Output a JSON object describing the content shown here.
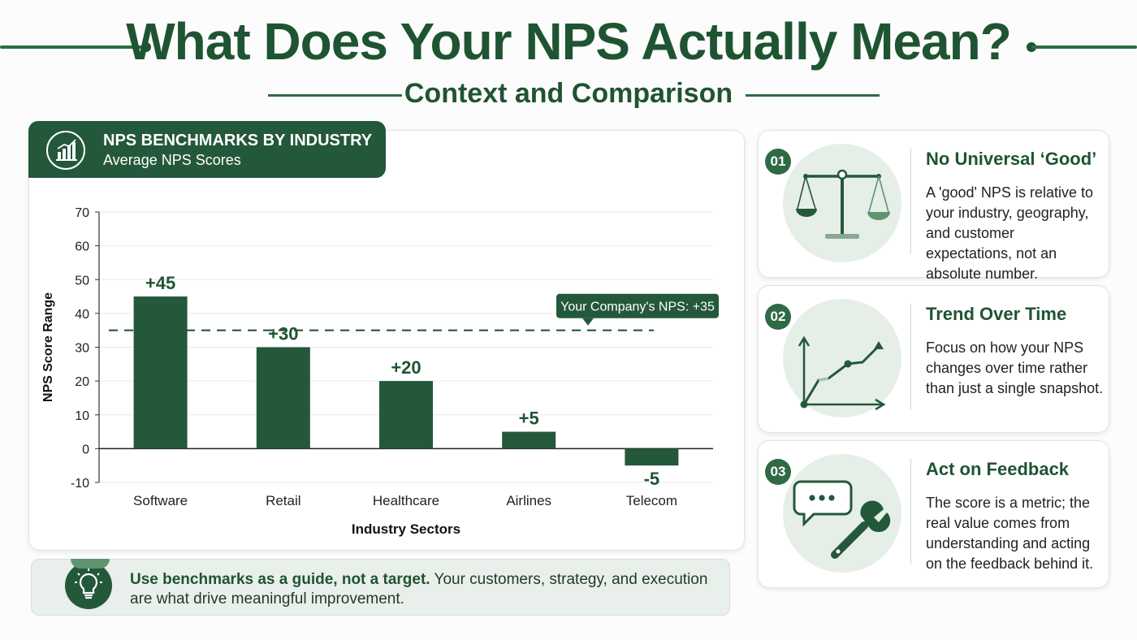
{
  "header": {
    "title": "What Does Your NPS Actually Mean?",
    "subtitle": "Context and Comparison"
  },
  "chart_card": {
    "title": "NPS BENCHMARKS BY INDUSTRY",
    "subtitle": "Average NPS Scores",
    "icon": "bar-chart-icon"
  },
  "chart_data": {
    "type": "bar",
    "title": "NPS BENCHMARKS BY INDUSTRY",
    "subtitle": "Average NPS Scores",
    "xlabel": "Industry Sectors",
    "ylabel": "NPS Score Range",
    "categories": [
      "Software",
      "Retail",
      "Healthcare",
      "Airlines",
      "Telecom"
    ],
    "values": [
      45,
      30,
      20,
      5,
      -5
    ],
    "data_labels": [
      "+45",
      "+30",
      "+20",
      "+5",
      "-5"
    ],
    "ylim": [
      -10,
      70
    ],
    "yticks": [
      70,
      60,
      50,
      40,
      30,
      20,
      10,
      0,
      -10
    ],
    "grid": true,
    "reference_line": {
      "value": 35,
      "label": "Your Company's NPS: +35"
    },
    "colors": {
      "bar": "#24583a",
      "reference": "#24583a"
    }
  },
  "tip": {
    "bold": "Use benchmarks as a guide, not a target.",
    "text": " Your customers, strategy, and execution are what drive meaningful improvement.",
    "icon": "lightbulb-icon"
  },
  "cards": [
    {
      "number": "01",
      "title": "No Universal ‘Good’",
      "body": "A 'good' NPS is relative to your industry, geography, and customer expectations, not an absolute number.",
      "icon": "scales-icon"
    },
    {
      "number": "02",
      "title": "Trend Over Time",
      "body": "Focus on how your NPS changes over time rather than just a single snapshot.",
      "icon": "trend-chart-icon"
    },
    {
      "number": "03",
      "title": "Act on Feedback",
      "body": "The score is a metric; the real value comes from understanding and acting on the feedback behind it.",
      "icon": "chat-wrench-icon"
    }
  ],
  "colors": {
    "primary": "#1f5432",
    "accent": "#24583a",
    "light": "#e6eee8"
  }
}
